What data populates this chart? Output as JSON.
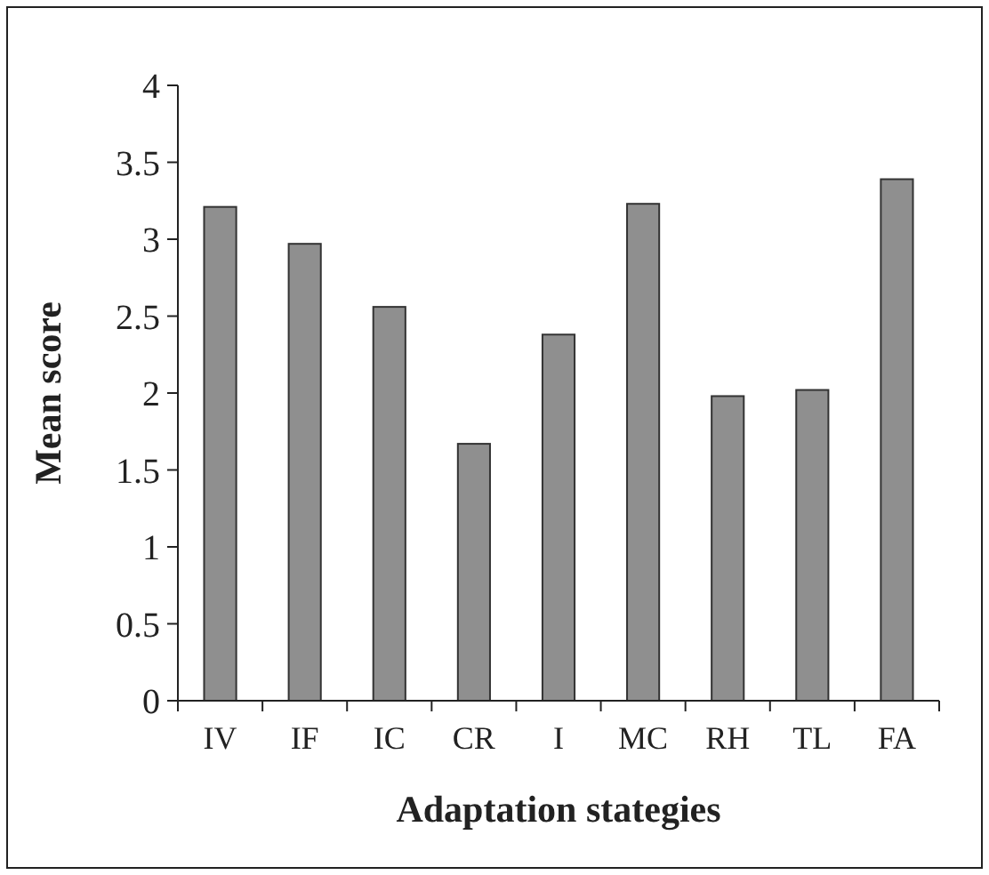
{
  "chart_data": {
    "type": "bar",
    "xlabel": "Adaptation stategies",
    "ylabel": "Mean score",
    "categories": [
      "IV",
      "IF",
      "IC",
      "CR",
      "I",
      "MC",
      "RH",
      "TL",
      "FA"
    ],
    "values": [
      3.21,
      2.97,
      2.56,
      1.67,
      2.38,
      3.23,
      1.98,
      2.02,
      3.39
    ],
    "color": "#8f8f8f",
    "ylim": [
      0,
      4
    ],
    "yticks": [
      0,
      0.5,
      1,
      1.5,
      2,
      2.5,
      3,
      3.5,
      4
    ],
    "grid": false
  }
}
